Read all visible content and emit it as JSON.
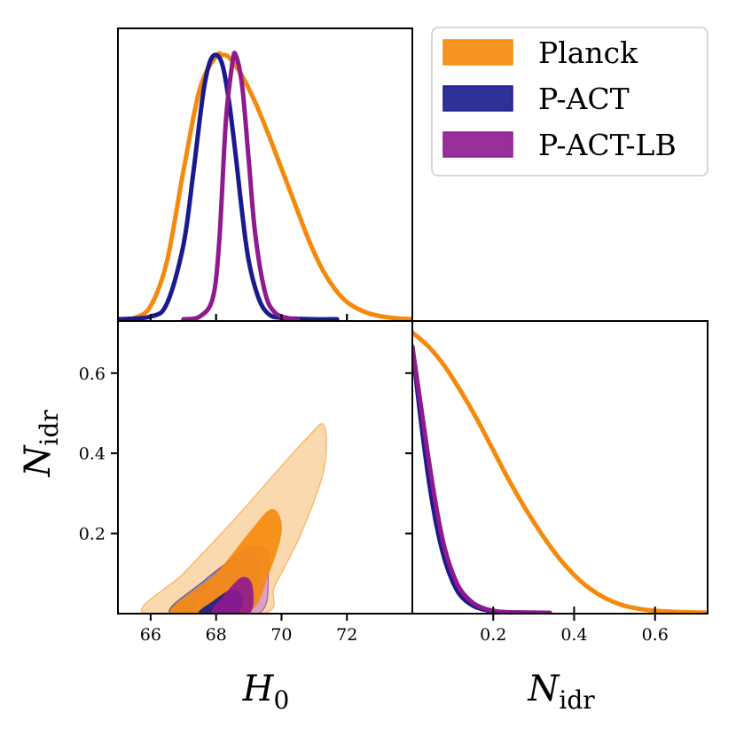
{
  "chart_data": {
    "type": "triangle",
    "title": "",
    "legend": {
      "position": "top-right",
      "entries": [
        {
          "label": "Planck",
          "color": "#F5890C"
        },
        {
          "label": "P-ACT",
          "color": "#1A1A8E"
        },
        {
          "label": "P-ACT-LB",
          "color": "#8E1A8E"
        }
      ]
    },
    "params": {
      "H0": {
        "symbol": "H",
        "sub": "0",
        "range": [
          65,
          74
        ],
        "ticks": [
          66,
          68,
          70,
          72
        ]
      },
      "Nidr": {
        "symbol": "N",
        "sub": "idr",
        "range": [
          0,
          0.73
        ],
        "ticks": [
          0.2,
          0.4,
          0.6
        ]
      }
    },
    "series": [
      {
        "name": "Planck",
        "color": "#F5890C",
        "light": "#F9D09A",
        "h0_pdf": {
          "x": [
            65,
            65.5,
            66,
            66.5,
            67,
            67.5,
            68,
            68.2,
            68.4,
            68.8,
            69.2,
            69.6,
            70,
            70.4,
            70.8,
            71.2,
            71.6,
            72,
            72.5,
            73,
            73.5,
            74
          ],
          "y": [
            0,
            0.005,
            0.05,
            0.22,
            0.56,
            0.87,
            0.995,
            1.0,
            0.99,
            0.92,
            0.82,
            0.7,
            0.57,
            0.44,
            0.31,
            0.2,
            0.12,
            0.065,
            0.03,
            0.012,
            0.004,
            0
          ]
        },
        "nidr_pdf": {
          "x": [
            0,
            0.04,
            0.08,
            0.12,
            0.16,
            0.2,
            0.24,
            0.28,
            0.32,
            0.36,
            0.4,
            0.44,
            0.48,
            0.52,
            0.56,
            0.6,
            0.65,
            0.73
          ],
          "y": [
            1.0,
            0.95,
            0.88,
            0.79,
            0.69,
            0.58,
            0.47,
            0.37,
            0.28,
            0.2,
            0.135,
            0.085,
            0.05,
            0.027,
            0.014,
            0.007,
            0.003,
            0
          ]
        },
        "contour_2d": {
          "sigma1": [
            [
              66.6,
              0
            ],
            [
              68.0,
              0.1
            ],
            [
              69.0,
              0.2
            ],
            [
              69.7,
              0.26
            ],
            [
              70.0,
              0.21
            ],
            [
              69.6,
              0.1
            ],
            [
              68.9,
              0
            ]
          ],
          "sigma2": [
            [
              65.8,
              0
            ],
            [
              67.0,
              0.1
            ],
            [
              68.5,
              0.23
            ],
            [
              69.8,
              0.35
            ],
            [
              70.8,
              0.44
            ],
            [
              71.3,
              0.47
            ],
            [
              71.3,
              0.36
            ],
            [
              70.6,
              0.2
            ],
            [
              69.8,
              0.07
            ],
            [
              69.4,
              0
            ]
          ]
        }
      },
      {
        "name": "P-ACT",
        "color": "#1A1A8E",
        "light": "#7A7AB8",
        "h0_pdf": {
          "x": [
            65,
            66,
            66.5,
            67,
            67.3,
            67.6,
            67.8,
            68,
            68.2,
            68.4,
            68.6,
            68.8,
            69,
            69.3,
            69.6,
            70,
            71,
            71.7
          ],
          "y": [
            0,
            0.01,
            0.06,
            0.28,
            0.55,
            0.85,
            0.97,
            1.0,
            0.96,
            0.82,
            0.62,
            0.4,
            0.22,
            0.08,
            0.02,
            0.005,
            0,
            0
          ]
        },
        "nidr_pdf": {
          "x": [
            0,
            0.02,
            0.04,
            0.06,
            0.08,
            0.1,
            0.12,
            0.15,
            0.18,
            0.21,
            0.25,
            0.34
          ],
          "y": [
            0.95,
            0.7,
            0.48,
            0.31,
            0.19,
            0.11,
            0.06,
            0.025,
            0.01,
            0.003,
            0.001,
            0
          ]
        },
        "contour_2d": {
          "sigma1": [
            [
              67.5,
              0
            ],
            [
              67.9,
              0.03
            ],
            [
              68.5,
              0.06
            ],
            [
              68.8,
              0.04
            ],
            [
              68.6,
              0
            ]
          ],
          "sigma2": [
            [
              66.6,
              0
            ],
            [
              67.6,
              0.08
            ],
            [
              68.6,
              0.14
            ],
            [
              69.2,
              0.15
            ],
            [
              69.3,
              0.1
            ],
            [
              68.9,
              0
            ]
          ]
        }
      },
      {
        "name": "P-ACT-LB",
        "color": "#8E1A8E",
        "light": "#CF94CF",
        "h0_pdf": {
          "x": [
            67,
            67.5,
            67.9,
            68.1,
            68.3,
            68.5,
            68.6,
            68.8,
            69,
            69.2,
            69.5,
            69.8,
            70.2,
            70.5
          ],
          "y": [
            0,
            0.01,
            0.08,
            0.3,
            0.75,
            0.97,
            1.0,
            0.88,
            0.6,
            0.32,
            0.1,
            0.025,
            0.004,
            0
          ]
        },
        "nidr_pdf": {
          "x": [
            0,
            0.02,
            0.04,
            0.06,
            0.08,
            0.1,
            0.12,
            0.15,
            0.18,
            0.21,
            0.25,
            0.34
          ],
          "y": [
            0.95,
            0.75,
            0.55,
            0.37,
            0.23,
            0.14,
            0.08,
            0.035,
            0.014,
            0.005,
            0.001,
            0
          ]
        },
        "contour_2d": {
          "sigma1": [
            [
              67.9,
              0
            ],
            [
              68.3,
              0.05
            ],
            [
              68.8,
              0.09
            ],
            [
              69.1,
              0.07
            ],
            [
              69.0,
              0
            ]
          ],
          "sigma2": [
            [
              67.3,
              0
            ],
            [
              68.0,
              0.1
            ],
            [
              68.9,
              0.16
            ],
            [
              69.5,
              0.16
            ],
            [
              69.6,
              0.1
            ],
            [
              69.3,
              0
            ]
          ]
        }
      }
    ]
  }
}
